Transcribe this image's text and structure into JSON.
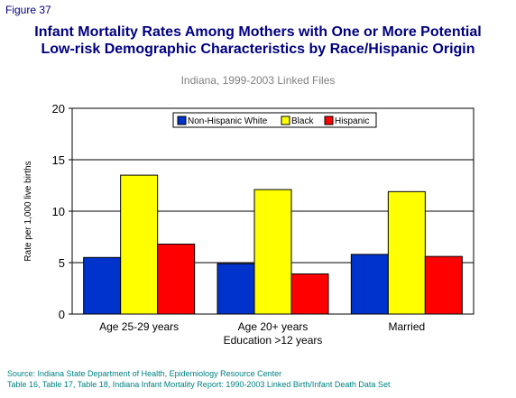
{
  "figure_label": "Figure 37",
  "title_line1": "Infant Mortality Rates Among Mothers with One or More Potential",
  "title_line2": "Low-risk Demographic Characteristics by Race/Hispanic Origin",
  "subtitle": "Indiana, 1999-2003 Linked Files",
  "source_line1": "Source: Indiana State Department of Health, Epidemiology Resource Center",
  "source_line2": "Table 16, Table 17, Table 18, Indiana Infant Mortality Report: 1990-2003 Linked Birth/Infant Death Data Set",
  "chart_data": {
    "type": "bar",
    "categories": [
      [
        "Age 25-29 years"
      ],
      [
        "Age 20+ years",
        "Education >12 years"
      ],
      [
        "Married"
      ]
    ],
    "series": [
      {
        "name": "Non-Hispanic White",
        "color": "#0033cc",
        "values": [
          5.5,
          4.9,
          5.8
        ]
      },
      {
        "name": "Black",
        "color": "#ffff00",
        "values": [
          13.5,
          12.1,
          11.9
        ]
      },
      {
        "name": "Hispanic",
        "color": "#ff0000",
        "values": [
          6.8,
          3.9,
          5.6
        ]
      }
    ],
    "ylabel": "Rate per 1,000 live births",
    "ylim": [
      0,
      20
    ],
    "yticks": [
      0,
      5,
      10,
      15,
      20
    ],
    "grid": true,
    "legend_position": "top-center"
  }
}
